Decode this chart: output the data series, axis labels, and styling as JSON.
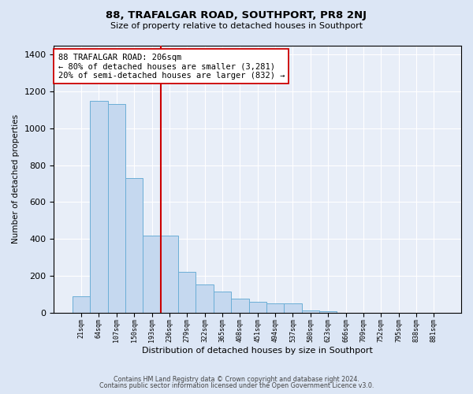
{
  "title": "88, TRAFALGAR ROAD, SOUTHPORT, PR8 2NJ",
  "subtitle": "Size of property relative to detached houses in Southport",
  "xlabel": "Distribution of detached houses by size in Southport",
  "ylabel": "Number of detached properties",
  "categories": [
    "21sqm",
    "64sqm",
    "107sqm",
    "150sqm",
    "193sqm",
    "236sqm",
    "279sqm",
    "322sqm",
    "365sqm",
    "408sqm",
    "451sqm",
    "494sqm",
    "537sqm",
    "580sqm",
    "623sqm",
    "666sqm",
    "709sqm",
    "752sqm",
    "795sqm",
    "838sqm",
    "881sqm"
  ],
  "values": [
    90,
    1150,
    1130,
    730,
    420,
    420,
    220,
    155,
    115,
    75,
    60,
    50,
    50,
    10,
    8,
    0,
    0,
    0,
    0,
    0,
    0
  ],
  "bar_color": "#c5d8ef",
  "bar_edge_color": "#6baed6",
  "vline_x": 4.5,
  "vline_color": "#cc0000",
  "annotation_text": "88 TRAFALGAR ROAD: 206sqm\n← 80% of detached houses are smaller (3,281)\n20% of semi-detached houses are larger (832) →",
  "annotation_box_color": "white",
  "annotation_box_edge": "#cc0000",
  "ylim": [
    0,
    1450
  ],
  "yticks": [
    0,
    200,
    400,
    600,
    800,
    1000,
    1200,
    1400
  ],
  "footer1": "Contains HM Land Registry data © Crown copyright and database right 2024.",
  "footer2": "Contains public sector information licensed under the Open Government Licence v3.0.",
  "bg_color": "#dce6f5",
  "plot_bg_color": "#e8eef8"
}
